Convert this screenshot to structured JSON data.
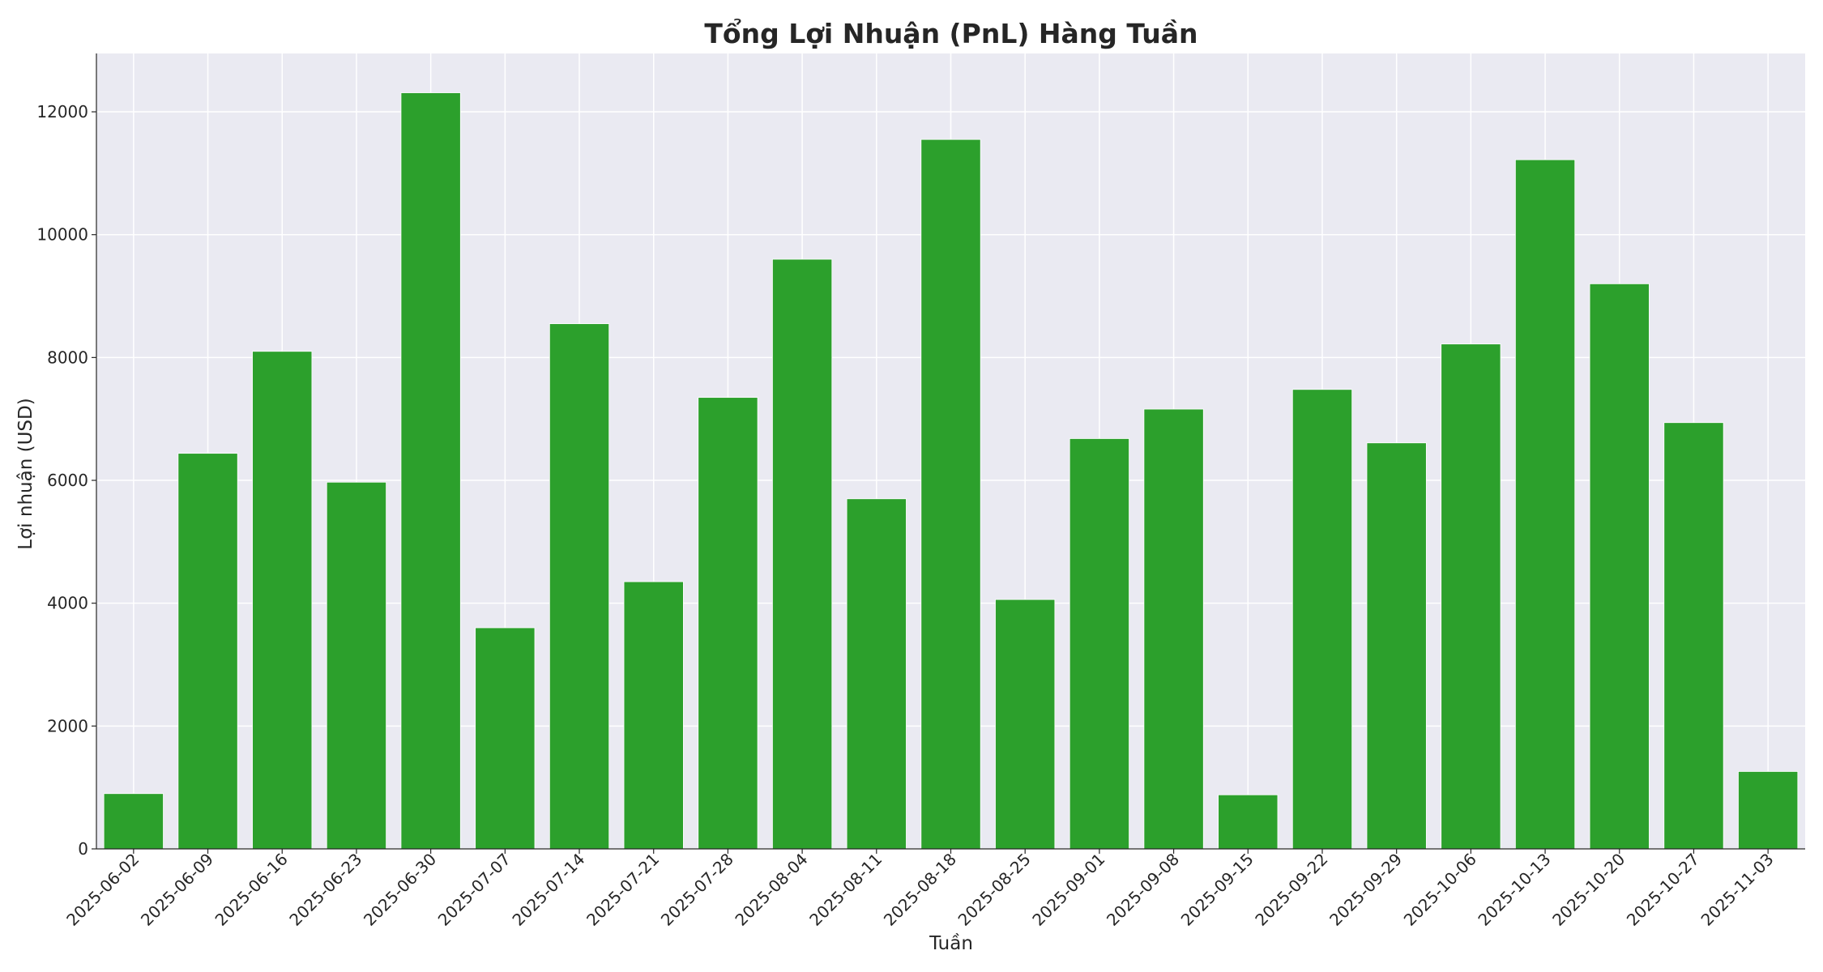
{
  "chart_data": {
    "type": "bar",
    "title": "Tổng Lợi Nhuận (PnL) Hàng Tuần",
    "xlabel": "Tuần",
    "ylabel": "Lợi nhuận (USD)",
    "ylim": [
      0,
      12950
    ],
    "yticks": [
      0,
      2000,
      4000,
      6000,
      8000,
      10000,
      12000
    ],
    "categories": [
      "2025-06-02",
      "2025-06-09",
      "2025-06-16",
      "2025-06-23",
      "2025-06-30",
      "2025-07-07",
      "2025-07-14",
      "2025-07-21",
      "2025-07-28",
      "2025-08-04",
      "2025-08-11",
      "2025-08-18",
      "2025-08-25",
      "2025-09-01",
      "2025-09-08",
      "2025-09-15",
      "2025-09-22",
      "2025-09-29",
      "2025-10-06",
      "2025-10-13",
      "2025-10-20",
      "2025-10-27",
      "2025-11-03"
    ],
    "values": [
      900,
      6440,
      8100,
      5970,
      12310,
      3600,
      8550,
      4350,
      7350,
      9600,
      5700,
      11550,
      4060,
      6680,
      7160,
      880,
      7480,
      6610,
      8220,
      11220,
      9200,
      6940,
      1260
    ],
    "grid": true,
    "legend": "none",
    "colors": {
      "bar": "#2ca02c",
      "plot_background": "#eaeaf2",
      "grid": "#ffffff",
      "text": "#262626",
      "axis": "#262626"
    }
  }
}
